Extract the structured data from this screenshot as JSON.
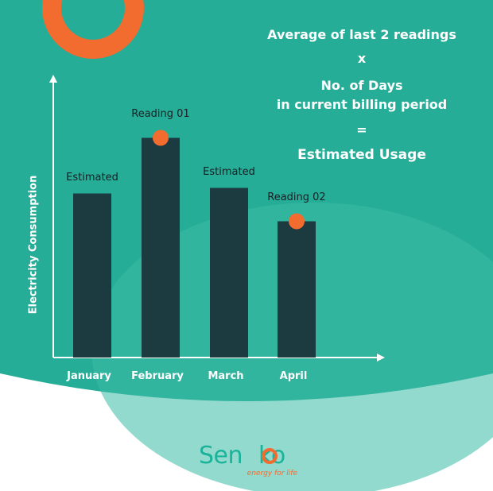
{
  "colors": {
    "teal": "#26ad97",
    "teal_light": "#3bbca5",
    "bar": "#1c3b41",
    "marker": "#f26b2f",
    "brand_green": "#1bb39a",
    "brand_orange": "#f26b2f"
  },
  "formula": {
    "line1": "Average of last 2 readings",
    "op1": "x",
    "line2a": "No. of Days",
    "line2b": "in current billing period",
    "op2": "=",
    "result": "Estimated Usage"
  },
  "chart_data": {
    "type": "bar",
    "ylabel": "Electricity Consumption",
    "xlabel": "",
    "categories": [
      "January",
      "February",
      "March",
      "April"
    ],
    "values": [
      59,
      79,
      61,
      49
    ],
    "ylim": [
      0,
      100
    ],
    "grid": false,
    "bar_labels": [
      "Estimated",
      "Reading 01",
      "Estimated",
      "Reading 02"
    ],
    "markers": [
      false,
      true,
      false,
      true
    ]
  },
  "brand": {
    "name_part1": "Sen",
    "name_part2": "ko",
    "tagline": "energy for life"
  }
}
